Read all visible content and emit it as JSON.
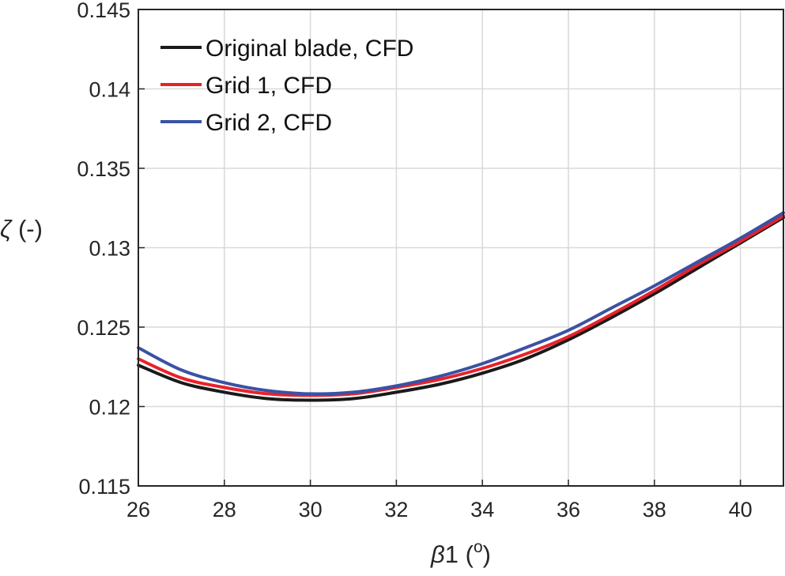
{
  "chart_data": {
    "type": "line",
    "title": "",
    "xlabel": {
      "symbol": "β",
      "text": "1 (",
      "superscript": "o",
      "suffix": ")"
    },
    "ylabel": {
      "symbol": "ζ",
      "text": " (-)"
    },
    "xlim": [
      26,
      41
    ],
    "ylim": [
      0.115,
      0.145
    ],
    "xticks": [
      26,
      28,
      30,
      32,
      34,
      36,
      38,
      40
    ],
    "yticks": [
      0.115,
      0.12,
      0.125,
      0.13,
      0.135,
      0.14,
      0.145
    ],
    "xtick_labels": [
      "26",
      "28",
      "30",
      "32",
      "34",
      "36",
      "38",
      "40"
    ],
    "ytick_labels": [
      "0.115",
      "0.12",
      "0.125",
      "0.13",
      "0.135",
      "0.14",
      "0.145"
    ],
    "grid": true,
    "legend_position": "top-left",
    "series": [
      {
        "name": "Original blade, CFD",
        "color": "#1a1a1a",
        "x": [
          26,
          27,
          28,
          29,
          30,
          31,
          32,
          33,
          34,
          35,
          36,
          37,
          38,
          39,
          40,
          41
        ],
        "y": [
          0.1226,
          0.1215,
          0.1209,
          0.1205,
          0.1204,
          0.1205,
          0.1209,
          0.1214,
          0.1221,
          0.123,
          0.1242,
          0.1256,
          0.1271,
          0.1287,
          0.1303,
          0.1319
        ]
      },
      {
        "name": "Grid 1, CFD",
        "color": "#e8222a",
        "x": [
          26,
          27,
          28,
          29,
          30,
          31,
          32,
          33,
          34,
          35,
          36,
          37,
          38,
          39,
          40,
          41
        ],
        "y": [
          0.123,
          0.1218,
          0.1212,
          0.1208,
          0.1207,
          0.1208,
          0.1212,
          0.1217,
          0.1224,
          0.1233,
          0.1244,
          0.1258,
          0.1273,
          0.1289,
          0.1304,
          0.132
        ]
      },
      {
        "name": "Grid 2, CFD",
        "color": "#3a52a4",
        "x": [
          26,
          27,
          28,
          29,
          30,
          31,
          32,
          33,
          34,
          35,
          36,
          37,
          38,
          39,
          40,
          41
        ],
        "y": [
          0.1237,
          0.1223,
          0.1215,
          0.121,
          0.1208,
          0.1209,
          0.1213,
          0.1219,
          0.1227,
          0.1237,
          0.1248,
          0.1262,
          0.1276,
          0.1291,
          0.1306,
          0.1322
        ]
      }
    ]
  }
}
